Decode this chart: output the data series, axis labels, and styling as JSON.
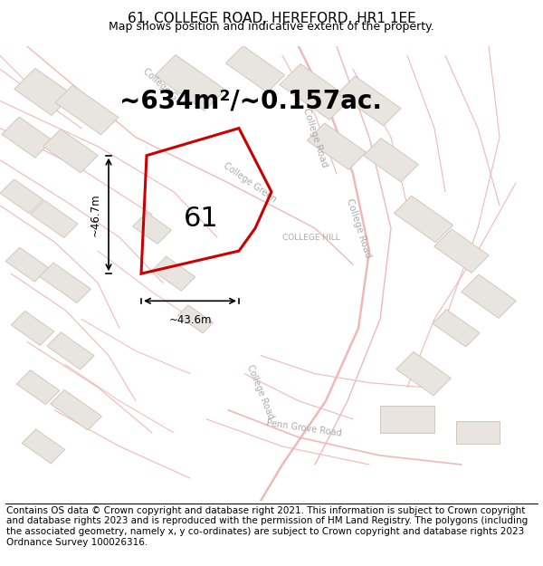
{
  "title": "61, COLLEGE ROAD, HEREFORD, HR1 1EE",
  "subtitle": "Map shows position and indicative extent of the property.",
  "area_text": "~634m²/~0.157ac.",
  "dim1_text": "~46.7m",
  "dim2_text": "~43.6m",
  "label": "61",
  "sublabel": "COLLEGE HILL",
  "footer": "Contains OS data © Crown copyright and database right 2021. This information is subject to Crown copyright and database rights 2023 and is reproduced with the permission of HM Land Registry. The polygons (including the associated geometry, namely x, y co-ordinates) are subject to Crown copyright and database rights 2023 Ordnance Survey 100026316.",
  "bg_color": "#f7f4f1",
  "road_color": "#f0b8b8",
  "road_outline_color": "#e8a0a0",
  "building_fill": "#e8e4e0",
  "building_edge": "#d0c8c0",
  "highlight_color": "#cc0000",
  "text_road_color": "#aaaaaa",
  "title_fontsize": 11,
  "subtitle_fontsize": 9,
  "area_fontsize": 20,
  "label_fontsize": 22,
  "footer_fontsize": 7.5
}
